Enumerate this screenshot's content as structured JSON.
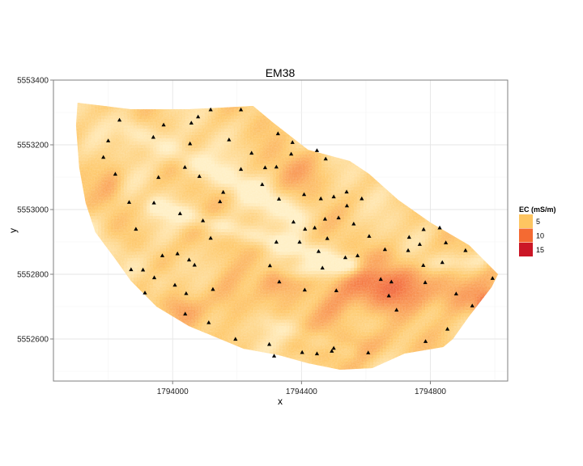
{
  "chart_data": {
    "type": "heatmap",
    "title": "EM38",
    "xlabel": "x",
    "ylabel": "y",
    "xlim": [
      1793630,
      1795040
    ],
    "ylim": [
      5552470,
      5553400
    ],
    "xticks": [
      1794000,
      1794400,
      1794800
    ],
    "xtick_labels": [
      "1794000",
      "1794400",
      "1794800"
    ],
    "yticks": [
      5552600,
      5552800,
      5553000,
      5553200,
      5553400
    ],
    "ytick_labels": [
      "5552600",
      "5552800",
      "5553000",
      "5553200",
      "5553400"
    ],
    "grid": true,
    "legend": {
      "title": "EC (mS/m)",
      "placement": "right",
      "entries": [
        {
          "label": "5",
          "value": 5,
          "color": "#fec561"
        },
        {
          "label": "10",
          "value": 10,
          "color": "#f46a32"
        },
        {
          "label": "15",
          "value": 15,
          "color": "#cb1626"
        }
      ]
    },
    "colors": {
      "low": "#ffeec0",
      "mid_low": "#fec561",
      "mid": "#f46a32",
      "high": "#cb1626",
      "panel_border": "#7f7f7f",
      "grid": "#ebebeb"
    },
    "field_boundary": [
      [
        1793705,
        5553330
      ],
      [
        1793870,
        5553310
      ],
      [
        1794050,
        5553310
      ],
      [
        1794250,
        5553320
      ],
      [
        1794310,
        5553270
      ],
      [
        1794420,
        5553185
      ],
      [
        1794550,
        5553150
      ],
      [
        1794610,
        5553110
      ],
      [
        1794700,
        5553030
      ],
      [
        1794800,
        5552960
      ],
      [
        1794920,
        5552890
      ],
      [
        1795010,
        5552800
      ],
      [
        1794990,
        5552760
      ],
      [
        1794920,
        5552670
      ],
      [
        1794870,
        5552600
      ],
      [
        1794840,
        5552575
      ],
      [
        1794720,
        5552555
      ],
      [
        1794620,
        5552510
      ],
      [
        1794520,
        5552505
      ],
      [
        1794420,
        5552525
      ],
      [
        1794330,
        5552550
      ],
      [
        1794220,
        5552570
      ],
      [
        1794050,
        5552640
      ],
      [
        1793950,
        5552700
      ],
      [
        1793870,
        5552780
      ],
      [
        1793820,
        5552850
      ],
      [
        1793760,
        5552930
      ],
      [
        1793730,
        5553020
      ],
      [
        1793710,
        5553130
      ],
      [
        1793700,
        5553260
      ]
    ],
    "ec_features": {
      "base": 4.2,
      "blobs": [
        {
          "x": 1794650,
          "y": 5552760,
          "sx": 170,
          "sy": 70,
          "v": 5.5
        },
        {
          "x": 1794700,
          "y": 5552830,
          "sx": 90,
          "sy": 40,
          "v": 3.0
        },
        {
          "x": 1794980,
          "y": 5552690,
          "sx": 35,
          "sy": 45,
          "v": 11.0
        },
        {
          "x": 1794880,
          "y": 5552740,
          "sx": 70,
          "sy": 60,
          "v": 3.5
        },
        {
          "x": 1794180,
          "y": 5552730,
          "sx": 60,
          "sy": 80,
          "v": 3.0
        },
        {
          "x": 1794020,
          "y": 5552690,
          "sx": 50,
          "sy": 40,
          "v": 2.5
        },
        {
          "x": 1793810,
          "y": 5553080,
          "sx": 40,
          "sy": 70,
          "v": 2.2
        },
        {
          "x": 1794380,
          "y": 5553120,
          "sx": 90,
          "sy": 60,
          "v": 2.0
        },
        {
          "x": 1794600,
          "y": 5552580,
          "sx": 120,
          "sy": 50,
          "v": 2.5
        },
        {
          "x": 1794350,
          "y": 5552780,
          "sx": 90,
          "sy": 40,
          "v": 1.8
        },
        {
          "x": 1794080,
          "y": 5552900,
          "sx": 60,
          "sy": 70,
          "v": 1.5
        },
        {
          "x": 1794500,
          "y": 5552680,
          "sx": 60,
          "sy": 60,
          "v": 2.5
        }
      ],
      "bands": [
        {
          "x1": 1793870,
          "y1": 5553250,
          "x2": 1794380,
          "y2": 5552985,
          "w": 38,
          "v": -2.8
        },
        {
          "x1": 1793950,
          "y1": 5553010,
          "x2": 1794550,
          "y2": 5552830,
          "w": 30,
          "v": -2.6
        },
        {
          "x1": 1794350,
          "y1": 5552810,
          "x2": 1794950,
          "y2": 5552840,
          "w": 30,
          "v": -2.2
        },
        {
          "x1": 1793720,
          "y1": 5552950,
          "x2": 1793950,
          "y2": 5552780,
          "w": 40,
          "v": -1.6
        },
        {
          "x1": 1794300,
          "y1": 5552650,
          "x2": 1794550,
          "y2": 5552560,
          "w": 30,
          "v": -1.5
        }
      ]
    },
    "sample_points": [
      [
        1793835,
        5553277
      ],
      [
        1793800,
        5553213
      ],
      [
        1793785,
        5553162
      ],
      [
        1793822,
        5553110
      ],
      [
        1793940,
        5553224
      ],
      [
        1793972,
        5553262
      ],
      [
        1794058,
        5553268
      ],
      [
        1794079,
        5553287
      ],
      [
        1794118,
        5553309
      ],
      [
        1794212,
        5553309
      ],
      [
        1794054,
        5553204
      ],
      [
        1794038,
        5553131
      ],
      [
        1794083,
        5553103
      ],
      [
        1794175,
        5553216
      ],
      [
        1794245,
        5553175
      ],
      [
        1794212,
        5553125
      ],
      [
        1794287,
        5553130
      ],
      [
        1794322,
        5553132
      ],
      [
        1794327,
        5553235
      ],
      [
        1794372,
        5553208
      ],
      [
        1794368,
        5553172
      ],
      [
        1794448,
        5553183
      ],
      [
        1794475,
        5553157
      ],
      [
        1793956,
        5553100
      ],
      [
        1794278,
        5553078
      ],
      [
        1794157,
        5553054
      ],
      [
        1794147,
        5553025
      ],
      [
        1793865,
        5553023
      ],
      [
        1793942,
        5553021
      ],
      [
        1794023,
        5552988
      ],
      [
        1794094,
        5552966
      ],
      [
        1794118,
        5552912
      ],
      [
        1794330,
        5553033
      ],
      [
        1794408,
        5553047
      ],
      [
        1794460,
        5553034
      ],
      [
        1794500,
        5553040
      ],
      [
        1794541,
        5553012
      ],
      [
        1794540,
        5553055
      ],
      [
        1794587,
        5553034
      ],
      [
        1794473,
        5552971
      ],
      [
        1794375,
        5552962
      ],
      [
        1794411,
        5552940
      ],
      [
        1794441,
        5552944
      ],
      [
        1794515,
        5552975
      ],
      [
        1794562,
        5552956
      ],
      [
        1794610,
        5552918
      ],
      [
        1794480,
        5552911
      ],
      [
        1794394,
        5552900
      ],
      [
        1794453,
        5552871
      ],
      [
        1794322,
        5552900
      ],
      [
        1794302,
        5552827
      ],
      [
        1793886,
        5552940
      ],
      [
        1794015,
        5552864
      ],
      [
        1794051,
        5552845
      ],
      [
        1794068,
        5552829
      ],
      [
        1793968,
        5552858
      ],
      [
        1793871,
        5552815
      ],
      [
        1793908,
        5552814
      ],
      [
        1793943,
        5552790
      ],
      [
        1793914,
        5552743
      ],
      [
        1794007,
        5552767
      ],
      [
        1794042,
        5552741
      ],
      [
        1794125,
        5552754
      ],
      [
        1794039,
        5552678
      ],
      [
        1794112,
        5552651
      ],
      [
        1794195,
        5552600
      ],
      [
        1794300,
        5552584
      ],
      [
        1794315,
        5552548
      ],
      [
        1794402,
        5552559
      ],
      [
        1794448,
        5552555
      ],
      [
        1794494,
        5552563
      ],
      [
        1794500,
        5552572
      ],
      [
        1794607,
        5552558
      ],
      [
        1794331,
        5552777
      ],
      [
        1794410,
        5552752
      ],
      [
        1794465,
        5552820
      ],
      [
        1794536,
        5552852
      ],
      [
        1794574,
        5552858
      ],
      [
        1794508,
        5552750
      ],
      [
        1794659,
        5552877
      ],
      [
        1794646,
        5552785
      ],
      [
        1794679,
        5552777
      ],
      [
        1794671,
        5552734
      ],
      [
        1794731,
        5552874
      ],
      [
        1794767,
        5552893
      ],
      [
        1794778,
        5552828
      ],
      [
        1794837,
        5552837
      ],
      [
        1794848,
        5552898
      ],
      [
        1794829,
        5552944
      ],
      [
        1794779,
        5552939
      ],
      [
        1794734,
        5552915
      ],
      [
        1794784,
        5552775
      ],
      [
        1794909,
        5552874
      ],
      [
        1794853,
        5552631
      ],
      [
        1794930,
        5552703
      ],
      [
        1794993,
        5552788
      ],
      [
        1794785,
        5552593
      ],
      [
        1794880,
        5552740
      ],
      [
        1794695,
        5552690
      ]
    ]
  }
}
